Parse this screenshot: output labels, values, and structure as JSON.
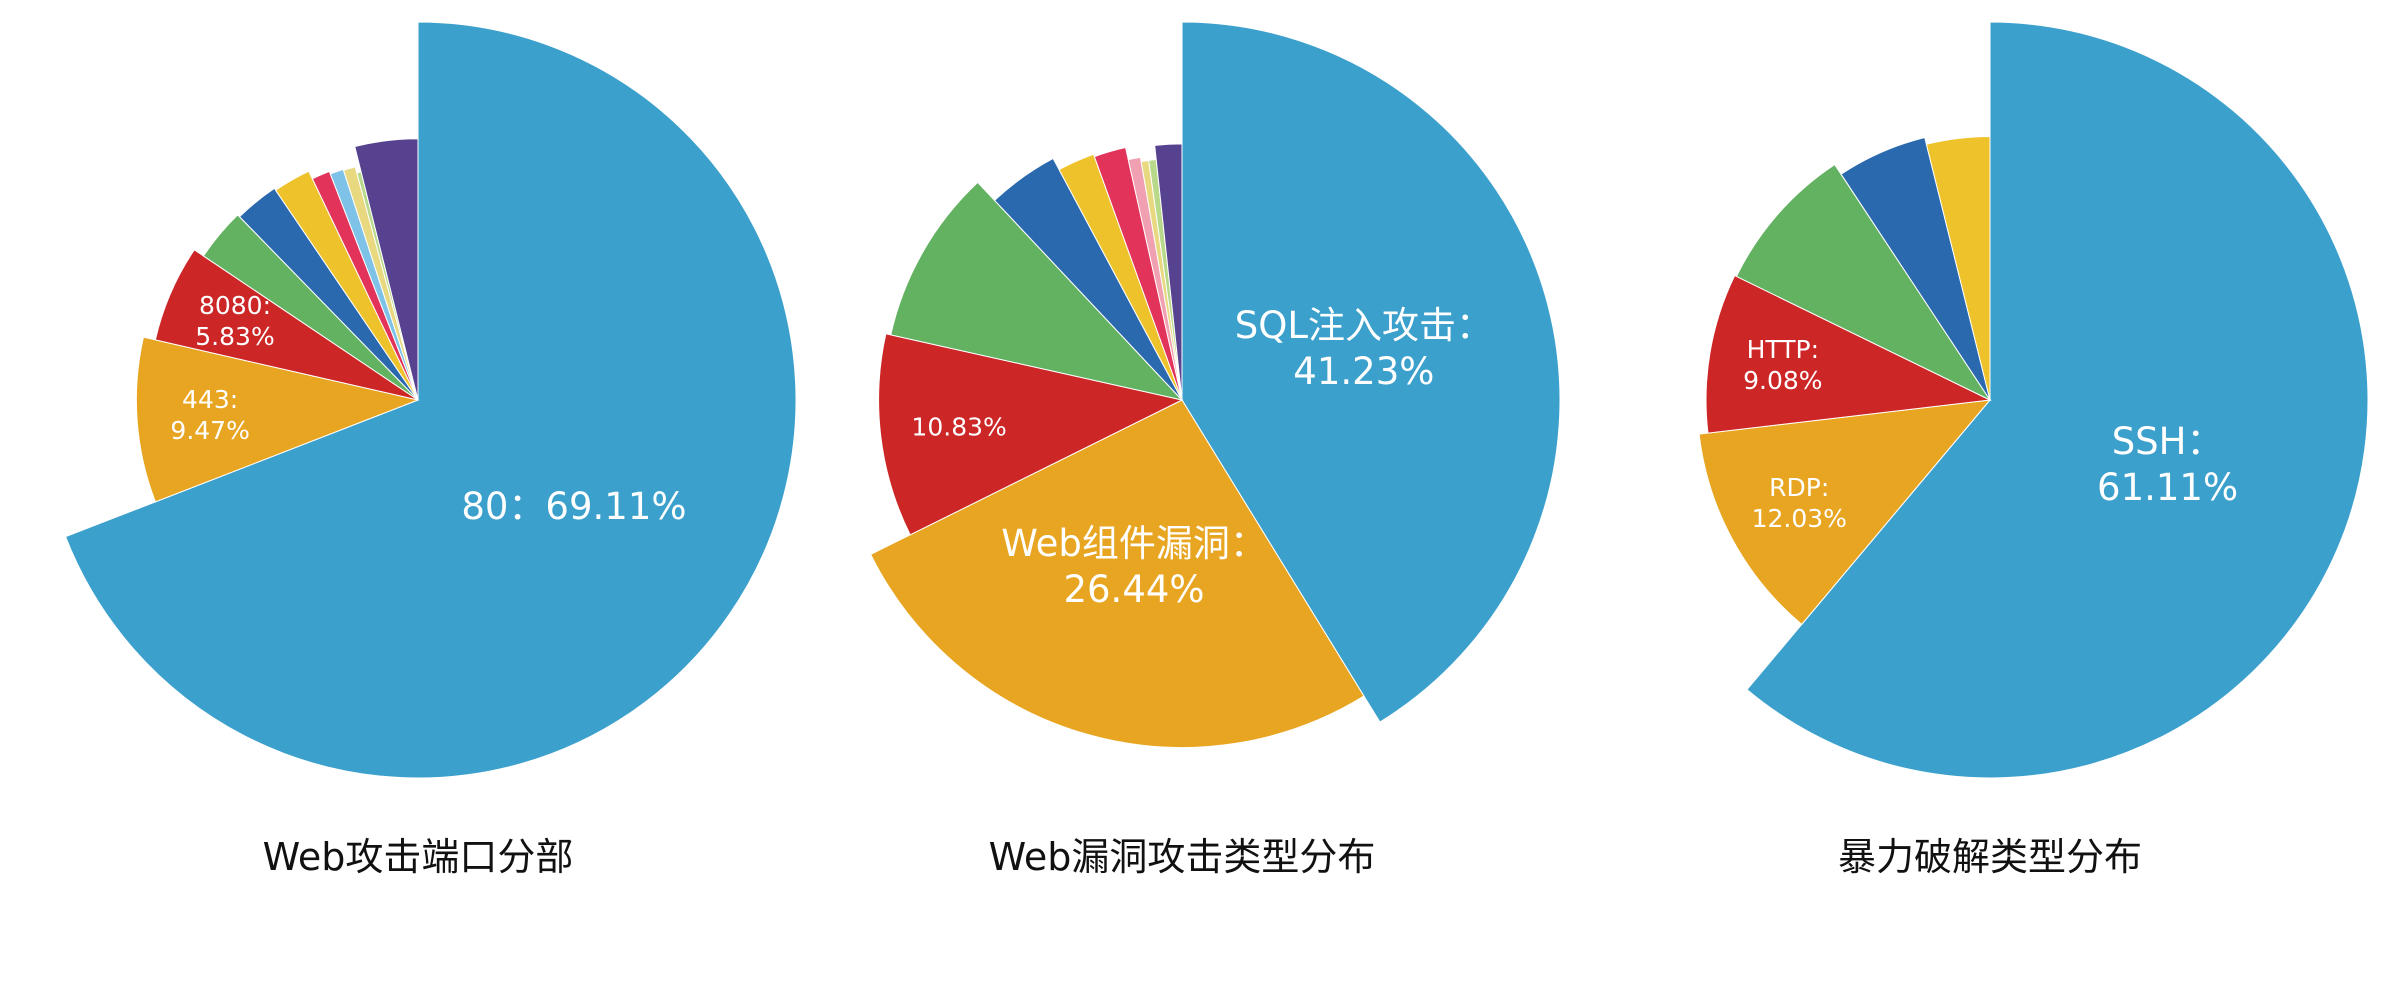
{
  "chart_data": [
    {
      "type": "pie",
      "title": "Web攻击端口分部",
      "values": [
        69.11,
        9.47,
        5.83,
        3.3,
        2.8,
        2.4,
        1.2,
        0.9,
        0.8,
        0.3,
        3.89
      ],
      "value_labels": [
        "80：69.11%",
        "443:\n9.47%",
        "8080:\n5.83%",
        null,
        null,
        null,
        null,
        null,
        null,
        null,
        null
      ],
      "colors": [
        "#3ca0cc",
        "#e8a521",
        "#cc2627",
        "#62b262",
        "#2b69ae",
        "#eec22a",
        "#e2345a",
        "#7fc2e8",
        "#e8d880",
        "#b8d88a",
        "#56428f"
      ]
    },
    {
      "type": "pie",
      "title": "Web漏洞攻击类型分布",
      "values": [
        41.23,
        26.44,
        10.83,
        9.5,
        4.2,
        2.3,
        2.0,
        0.8,
        0.5,
        0.5,
        1.7
      ],
      "value_labels": [
        "SQL注入攻击：\n41.23%",
        "Web组件漏洞：\n26.44%",
        "10.83%",
        null,
        null,
        null,
        null,
        null,
        null,
        null,
        null
      ],
      "colors": [
        "#3ca0cc",
        "#e8a521",
        "#cc2627",
        "#62b262",
        "#2b69ae",
        "#eec22a",
        "#e2345a",
        "#f0a0b0",
        "#e8d880",
        "#b8d88a",
        "#56428f"
      ]
    },
    {
      "type": "pie",
      "title": "暴力破解类型分布",
      "values": [
        61.11,
        12.03,
        9.08,
        8.5,
        5.4,
        3.88
      ],
      "value_labels": [
        "SSH：61.11%",
        "RDP:\n12.03%",
        "HTTP:\n9.08%",
        null,
        null,
        null
      ],
      "colors": [
        "#3ca0cc",
        "#e8a521",
        "#cc2627",
        "#62b262",
        "#2b69ae",
        "#eec22a"
      ]
    }
  ]
}
